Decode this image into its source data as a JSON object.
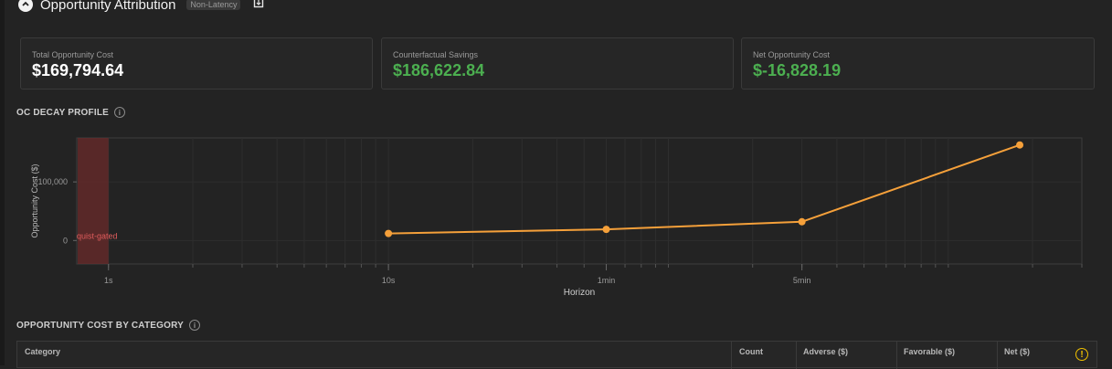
{
  "header": {
    "title": "Opportunity Attribution",
    "tag": "Non-Latency"
  },
  "metrics": [
    {
      "label": "Total Opportunity Cost",
      "value": "$169,794.64",
      "color": "#ffffff"
    },
    {
      "label": "Counterfactual Savings",
      "value": "$186,622.84",
      "color": "#4caf50"
    },
    {
      "label": "Net Opportunity Cost",
      "value": "$-16,828.19",
      "color": "#4caf50"
    }
  ],
  "decay_section": {
    "title": "OC DECAY PROFILE"
  },
  "chart_data": {
    "type": "line",
    "xlabel": "Horizon",
    "ylabel": "Opportunity Cost ($)",
    "x_scale": "log",
    "x_ticks": [
      "1s",
      "10s",
      "1min",
      "5min"
    ],
    "y_ticks": [
      "0",
      "100,000"
    ],
    "ylim": [
      -40000,
      175000
    ],
    "highlight_band_label": "quist-gated",
    "series": [
      {
        "color": "#f5a03a",
        "points": [
          {
            "x": "10s",
            "y": 12000
          },
          {
            "x": "1min",
            "y": 19000
          },
          {
            "x": "5min",
            "y": 32000
          },
          {
            "x": "30min",
            "y": 163000
          }
        ]
      }
    ]
  },
  "category_section": {
    "title": "OPPORTUNITY COST BY CATEGORY"
  },
  "table": {
    "columns": [
      "Category",
      "Count",
      "Adverse ($)",
      "Favorable ($)",
      "Net ($)"
    ]
  }
}
